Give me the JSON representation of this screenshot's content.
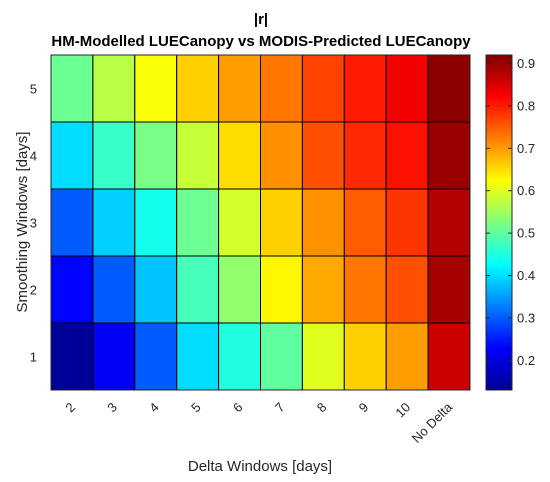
{
  "chart_data": {
    "type": "heatmap",
    "title": "|r|",
    "subtitle": "HM-Modelled LUECanopy vs MODIS-Predicted LUECanopy",
    "xlabel": "Delta Windows [days]",
    "ylabel": "Smoothing Windows [days]",
    "x_categories": [
      "2",
      "3",
      "4",
      "5",
      "6",
      "7",
      "8",
      "9",
      "10",
      "No Delta"
    ],
    "y_categories": [
      "1",
      "2",
      "3",
      "4",
      "5"
    ],
    "values": [
      [
        0.15,
        0.22,
        0.3,
        0.4,
        0.45,
        0.5,
        0.6,
        0.66,
        0.7,
        0.86
      ],
      [
        0.23,
        0.3,
        0.38,
        0.48,
        0.54,
        0.63,
        0.69,
        0.73,
        0.76,
        0.89
      ],
      [
        0.3,
        0.39,
        0.44,
        0.51,
        0.59,
        0.66,
        0.71,
        0.75,
        0.78,
        0.88
      ],
      [
        0.4,
        0.47,
        0.52,
        0.58,
        0.65,
        0.71,
        0.76,
        0.79,
        0.81,
        0.9
      ],
      [
        0.51,
        0.57,
        0.62,
        0.66,
        0.7,
        0.73,
        0.77,
        0.8,
        0.83,
        0.91
      ]
    ],
    "colorbar": {
      "min": 0.13,
      "max": 0.92,
      "ticks": [
        "0.2",
        "0.3",
        "0.4",
        "0.5",
        "0.6",
        "0.7",
        "0.8",
        "0.9"
      ],
      "colormap": "jet"
    },
    "grid": false,
    "legend": "colorbar-right"
  }
}
